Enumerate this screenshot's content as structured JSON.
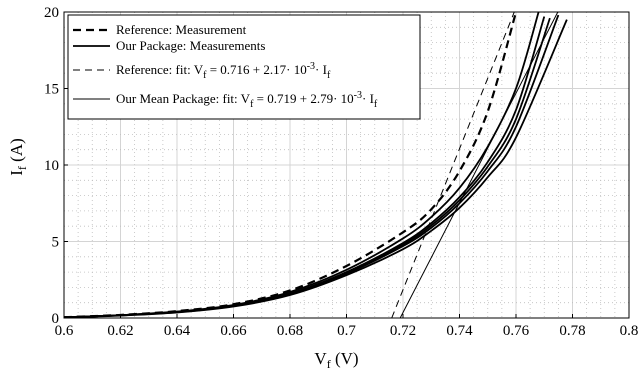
{
  "chart_data": {
    "type": "line",
    "xlabel": "V",
    "xlabel_sub": "f",
    "xlabel_unit": "(V)",
    "ylabel": "I",
    "ylabel_sub": "f",
    "ylabel_unit": "(A)",
    "xlim": [
      0.6,
      0.8
    ],
    "ylim": [
      0,
      20
    ],
    "xticks": [
      "0.6",
      "0.62",
      "0.64",
      "0.66",
      "0.68",
      "0.7",
      "0.72",
      "0.74",
      "0.76",
      "0.78",
      "0.8"
    ],
    "yticks": [
      "0",
      "5",
      "10",
      "15",
      "20"
    ],
    "grid": true,
    "minor_grid": true,
    "legend_position": "top-left",
    "legend": [
      {
        "style": "dashed-thick",
        "label": "Reference: Measurement"
      },
      {
        "style": "solid-thick",
        "label": "Our Package: Measurements"
      },
      {
        "style": "dashed-thin",
        "label_parts": [
          "Reference: fit: V",
          "f",
          " = 0.716 + 2.17· 10",
          "-3",
          "· I",
          "f"
        ]
      },
      {
        "style": "solid-thin",
        "label_parts": [
          "Our Mean Package: fit: V",
          "f",
          " = 0.719 + 2.79· 10",
          "-3",
          "· I",
          "f"
        ]
      }
    ],
    "series": [
      {
        "name": "Reference: Measurement",
        "style": "dashed-thick",
        "x": [
          0.6,
          0.62,
          0.64,
          0.66,
          0.68,
          0.7,
          0.72,
          0.73,
          0.74,
          0.75,
          0.76
        ],
        "y": [
          0.05,
          0.2,
          0.45,
          0.9,
          1.8,
          3.4,
          5.6,
          7.1,
          9.6,
          13.5,
          20
        ]
      },
      {
        "name": "Our Package: Measurements",
        "style": "solid-thick",
        "x": [
          0.6,
          0.62,
          0.64,
          0.66,
          0.68,
          0.7,
          0.72,
          0.73,
          0.74,
          0.75,
          0.76,
          0.77
        ],
        "y": [
          0.05,
          0.18,
          0.4,
          0.8,
          1.6,
          3.0,
          4.9,
          6.2,
          7.9,
          10.2,
          13.6,
          19.7
        ]
      },
      {
        "name": "Our Package: Measurements",
        "style": "solid-thick",
        "x": [
          0.6,
          0.62,
          0.64,
          0.66,
          0.68,
          0.7,
          0.72,
          0.73,
          0.74,
          0.75,
          0.76,
          0.775
        ],
        "y": [
          0.05,
          0.17,
          0.38,
          0.78,
          1.55,
          2.9,
          4.7,
          5.9,
          7.5,
          9.6,
          12.5,
          19.8
        ]
      },
      {
        "name": "Our Package: Measurements",
        "style": "solid-thick",
        "x": [
          0.6,
          0.62,
          0.64,
          0.66,
          0.68,
          0.7,
          0.72,
          0.73,
          0.74,
          0.75,
          0.76,
          0.778
        ],
        "y": [
          0.05,
          0.16,
          0.36,
          0.75,
          1.5,
          2.8,
          4.5,
          5.7,
          7.2,
          9.2,
          11.8,
          19.5
        ]
      },
      {
        "name": "Our Package: Measurements",
        "style": "solid-thick",
        "x": [
          0.6,
          0.62,
          0.64,
          0.66,
          0.68,
          0.7,
          0.72,
          0.73,
          0.74,
          0.75,
          0.76,
          0.768
        ],
        "y": [
          0.05,
          0.19,
          0.42,
          0.85,
          1.7,
          3.15,
          5.2,
          6.6,
          8.5,
          11.2,
          15.0,
          20
        ]
      },
      {
        "name": "Our Package: Measurements",
        "style": "solid-thick",
        "x": [
          0.6,
          0.62,
          0.64,
          0.66,
          0.68,
          0.7,
          0.72,
          0.73,
          0.74,
          0.75,
          0.76,
          0.772
        ],
        "y": [
          0.05,
          0.18,
          0.39,
          0.8,
          1.58,
          2.95,
          4.8,
          6.05,
          7.7,
          9.9,
          13.0,
          19.6
        ]
      },
      {
        "name": "Reference: fit",
        "style": "dashed-thin",
        "x": [
          0.716,
          0.7594
        ],
        "y": [
          0,
          20
        ]
      },
      {
        "name": "Our Mean Package: fit",
        "style": "solid-thin",
        "x": [
          0.719,
          0.7748
        ],
        "y": [
          0,
          20
        ]
      }
    ]
  }
}
